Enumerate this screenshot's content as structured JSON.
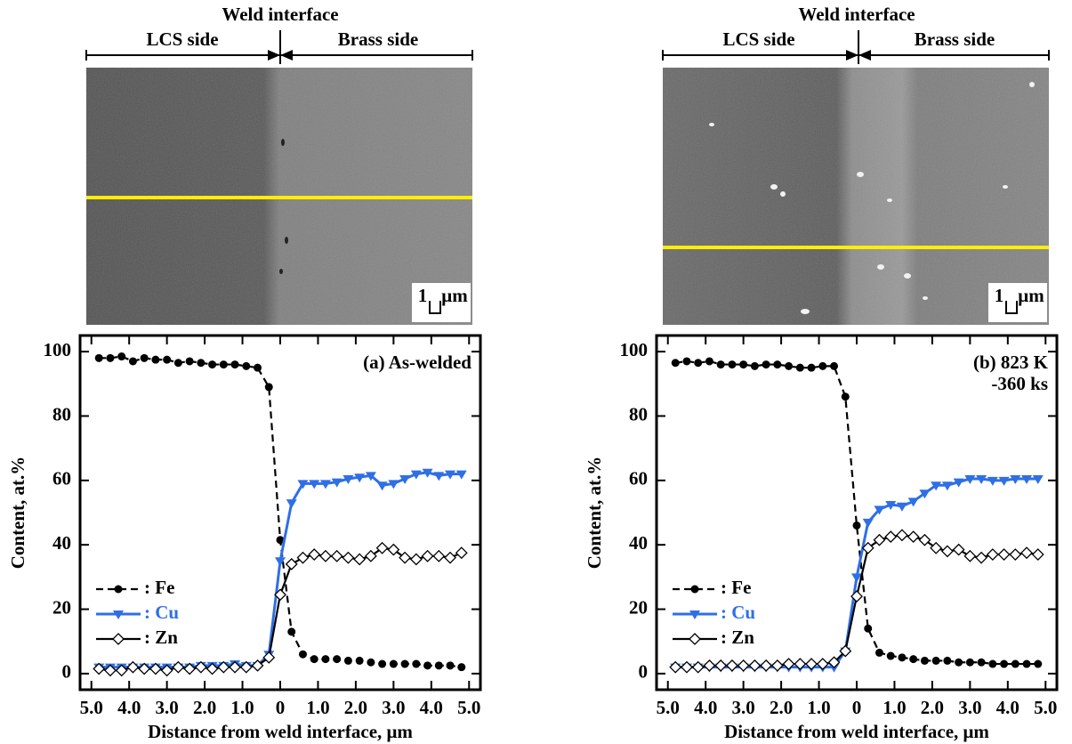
{
  "images": [
    {
      "header": "Weld interface",
      "left_label": "LCS side",
      "right_label": "Brass side",
      "scale_value": "1",
      "scale_unit": "μm"
    },
    {
      "header": "Weld interface",
      "left_label": "LCS side",
      "right_label": "Brass side",
      "scale_value": "1",
      "scale_unit": "μm"
    }
  ],
  "chart_data": [
    {
      "type": "line",
      "annotation": [
        "(a) As-welded"
      ],
      "x_label": "Distance from weld interface, μm",
      "y_label": "Content, at.%",
      "x": [
        -4.8,
        -4.5,
        -4.2,
        -3.9,
        -3.6,
        -3.3,
        -3,
        -2.7,
        -2.4,
        -2.1,
        -1.8,
        -1.5,
        -1.2,
        -0.9,
        -0.6,
        -0.3,
        0,
        0.3,
        0.6,
        0.9,
        1.2,
        1.5,
        1.8,
        2.1,
        2.4,
        2.7,
        3,
        3.3,
        3.6,
        3.9,
        4.2,
        4.5,
        4.8
      ],
      "series": [
        {
          "name": ": Fe",
          "color": "#000000",
          "line_style": "dashed",
          "marker": "circle",
          "values": [
            98,
            98,
            98.5,
            97,
            98,
            97.5,
            97.5,
            96.5,
            97,
            96.5,
            96,
            96,
            96,
            95.5,
            95,
            89,
            41.5,
            13,
            6,
            4.5,
            4.5,
            4.5,
            4,
            4,
            3.5,
            3,
            3,
            3,
            3,
            2.5,
            2.5,
            2.5,
            2
          ]
        },
        {
          "name": ": Cu",
          "color": "#2f6fe6",
          "line_style": "solid",
          "marker": "triangle-down",
          "values": [
            2,
            2,
            2,
            2,
            2,
            2,
            2,
            2,
            2,
            2.5,
            2.5,
            2.5,
            3,
            2.5,
            2.5,
            6,
            35,
            53,
            59,
            59,
            59,
            59.5,
            60.5,
            61,
            61.5,
            58.5,
            59,
            60.5,
            62,
            62.5,
            61.5,
            62,
            62
          ]
        },
        {
          "name": ": Zn",
          "color": "#000000",
          "line_style": "solid",
          "marker": "diamond",
          "values": [
            1.5,
            1,
            1,
            2,
            1.5,
            1.5,
            1,
            2,
            1.5,
            2,
            1.5,
            2,
            2,
            2,
            2.5,
            5,
            24.5,
            34,
            36,
            37,
            36.5,
            36.5,
            36,
            35.5,
            36.5,
            39,
            38.5,
            36,
            35.5,
            36.5,
            36.5,
            36,
            37.5
          ]
        }
      ],
      "xlim": [
        -5.3,
        5.3
      ],
      "xticks": [
        {
          "value": -5,
          "label": "5.0"
        },
        {
          "value": -4,
          "label": "4.0"
        },
        {
          "value": -3,
          "label": "3.0"
        },
        {
          "value": -2,
          "label": "2.0"
        },
        {
          "value": -1,
          "label": "1.0"
        },
        0,
        {
          "value": 1,
          "label": "1.0"
        },
        {
          "value": 2,
          "label": "2.0"
        },
        {
          "value": 3,
          "label": "3.0"
        },
        {
          "value": 4,
          "label": "4.0"
        },
        {
          "value": 5,
          "label": "5.0"
        }
      ],
      "ylim": [
        -5,
        105
      ],
      "yticks": [
        0,
        20,
        40,
        60,
        80,
        100
      ],
      "legend": "lower left"
    },
    {
      "type": "line",
      "annotation": [
        "(b) 823 K",
        "-360 ks"
      ],
      "x_label": "Distance from weld interface, μm",
      "y_label": "Content, at.%",
      "x": [
        -4.8,
        -4.5,
        -4.2,
        -3.9,
        -3.6,
        -3.3,
        -3,
        -2.7,
        -2.4,
        -2.1,
        -1.8,
        -1.5,
        -1.2,
        -0.9,
        -0.6,
        -0.3,
        0,
        0.3,
        0.6,
        0.9,
        1.2,
        1.5,
        1.8,
        2.1,
        2.4,
        2.7,
        3,
        3.3,
        3.6,
        3.9,
        4.2,
        4.5,
        4.8
      ],
      "series": [
        {
          "name": ": Fe",
          "color": "#000000",
          "line_style": "dashed",
          "marker": "circle",
          "values": [
            96.5,
            97,
            96.5,
            97,
            96,
            96,
            96,
            95.5,
            96,
            96,
            95.5,
            95,
            95,
            95.5,
            95.5,
            86,
            46,
            14,
            6.5,
            5.5,
            5,
            4.5,
            4,
            4,
            4,
            3.5,
            3.5,
            3.5,
            3,
            3,
            3,
            3,
            3
          ]
        },
        {
          "name": ": Cu",
          "color": "#2f6fe6",
          "line_style": "solid",
          "marker": "triangle-down",
          "values": [
            2,
            2,
            2,
            2,
            2,
            2,
            2,
            2,
            2,
            2,
            2,
            2,
            2,
            2,
            2,
            7,
            30,
            47,
            51,
            52.5,
            52,
            53.5,
            56,
            58.5,
            58.5,
            59.5,
            60.5,
            60.5,
            60,
            60,
            60.5,
            60.5,
            60.5
          ]
        },
        {
          "name": ": Zn",
          "color": "#000000",
          "line_style": "solid",
          "marker": "diamond",
          "values": [
            2,
            2,
            2,
            2.5,
            2.5,
            2.5,
            2.5,
            2.5,
            2.5,
            2.5,
            3,
            3,
            3,
            3,
            3.5,
            7,
            24,
            39,
            41.5,
            42.5,
            43,
            42.5,
            41.5,
            39,
            38,
            38.5,
            36.5,
            36,
            37,
            37,
            37,
            37.5,
            37
          ]
        }
      ],
      "xlim": [
        -5.3,
        5.3
      ],
      "xticks": [
        {
          "value": -5,
          "label": "5.0"
        },
        {
          "value": -4,
          "label": "4.0"
        },
        {
          "value": -3,
          "label": "3.0"
        },
        {
          "value": -2,
          "label": "2.0"
        },
        {
          "value": -1,
          "label": "1.0"
        },
        0,
        {
          "value": 1,
          "label": "1.0"
        },
        {
          "value": 2,
          "label": "2.0"
        },
        {
          "value": 3,
          "label": "3.0"
        },
        {
          "value": 4,
          "label": "4.0"
        },
        {
          "value": 5,
          "label": "5.0"
        }
      ],
      "ylim": [
        -5,
        105
      ],
      "yticks": [
        0,
        20,
        40,
        60,
        80,
        100
      ],
      "legend": "lower left"
    }
  ]
}
